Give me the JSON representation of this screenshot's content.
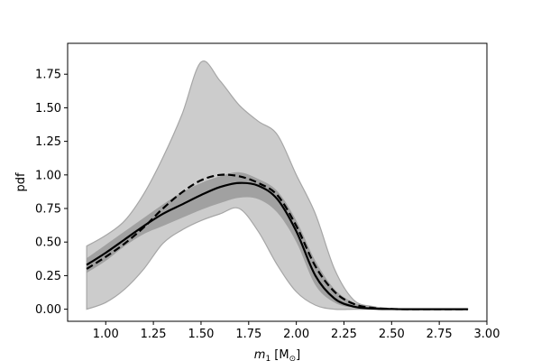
{
  "chart_data": {
    "type": "line",
    "title": "",
    "xlabel": "m₁ [M⊙]",
    "xlabel_parts": {
      "var": "m",
      "sub": "1",
      "unit": " [M",
      "unit_sub": "⊙",
      "close": "]"
    },
    "ylabel": "pdf",
    "xlim": [
      0.8,
      3.0
    ],
    "ylim": [
      -0.09,
      1.98
    ],
    "xticks": [
      "1.00",
      "1.25",
      "1.50",
      "1.75",
      "2.00",
      "2.25",
      "2.50",
      "2.75",
      "3.00"
    ],
    "yticks": [
      "0.00",
      "0.25",
      "0.50",
      "0.75",
      "1.00",
      "1.25",
      "1.50",
      "1.75"
    ],
    "grid": false,
    "colors": {
      "outer_band": "#cccccc",
      "outer_band_edge": "#a6a6a6",
      "inner_band": "#999999",
      "line": "#000000"
    },
    "x": [
      0.9,
      1.0,
      1.1,
      1.2,
      1.3,
      1.4,
      1.5,
      1.6,
      1.7,
      1.8,
      1.9,
      2.0,
      2.1,
      2.2,
      2.3,
      2.4,
      2.5,
      2.6,
      2.7,
      2.8,
      2.9
    ],
    "series": [
      {
        "role": "outer-band",
        "upper": [
          0.47,
          0.55,
          0.66,
          0.86,
          1.13,
          1.45,
          1.84,
          1.7,
          1.52,
          1.4,
          1.3,
          1.0,
          0.71,
          0.3,
          0.07,
          0.02,
          0.005,
          0.003,
          0.002,
          0.002,
          0.002
        ],
        "lower": [
          0.0,
          0.05,
          0.15,
          0.3,
          0.49,
          0.59,
          0.66,
          0.71,
          0.75,
          0.58,
          0.33,
          0.13,
          0.03,
          0.0,
          0.0,
          0.0,
          0.0,
          0.0,
          0.0,
          0.0,
          0.0
        ]
      },
      {
        "role": "inner-band",
        "upper": [
          0.38,
          0.48,
          0.58,
          0.68,
          0.78,
          0.87,
          0.94,
          0.99,
          1.02,
          0.97,
          0.88,
          0.66,
          0.36,
          0.15,
          0.05,
          0.012,
          0.003,
          0.002,
          0.001,
          0.001,
          0.001
        ],
        "lower": [
          0.27,
          0.36,
          0.47,
          0.56,
          0.62,
          0.68,
          0.74,
          0.79,
          0.83,
          0.82,
          0.72,
          0.5,
          0.18,
          0.05,
          0.01,
          0.003,
          0.001,
          0.0,
          0.0,
          0.0,
          0.0
        ]
      },
      {
        "role": "solid-line",
        "values": [
          0.33,
          0.42,
          0.52,
          0.62,
          0.71,
          0.78,
          0.85,
          0.91,
          0.94,
          0.92,
          0.82,
          0.58,
          0.25,
          0.08,
          0.02,
          0.005,
          0.001,
          0.0,
          0.0,
          0.0,
          0.0
        ]
      },
      {
        "role": "dashed-line",
        "values": [
          0.3,
          0.39,
          0.49,
          0.61,
          0.75,
          0.87,
          0.96,
          1.0,
          0.99,
          0.94,
          0.85,
          0.62,
          0.32,
          0.13,
          0.04,
          0.01,
          0.002,
          0.0,
          0.0,
          0.0,
          0.0
        ]
      }
    ]
  }
}
